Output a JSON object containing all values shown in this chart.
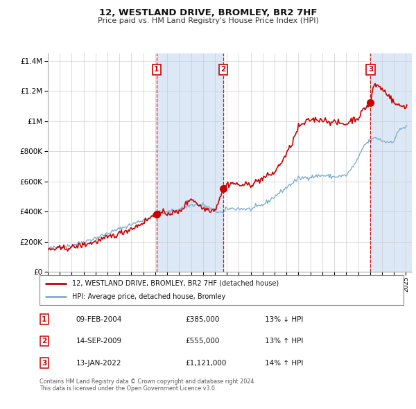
{
  "title": "12, WESTLAND DRIVE, BROMLEY, BR2 7HF",
  "subtitle": "Price paid vs. HM Land Registry's House Price Index (HPI)",
  "xlim": [
    1995.0,
    2025.5
  ],
  "ylim": [
    0,
    1450000
  ],
  "yticks": [
    0,
    200000,
    400000,
    600000,
    800000,
    1000000,
    1200000,
    1400000
  ],
  "ytick_labels": [
    "£0",
    "£200K",
    "£400K",
    "£600K",
    "£800K",
    "£1M",
    "£1.2M",
    "£1.4M"
  ],
  "xticks": [
    1995,
    1996,
    1997,
    1998,
    1999,
    2000,
    2001,
    2002,
    2003,
    2004,
    2005,
    2006,
    2007,
    2008,
    2009,
    2010,
    2011,
    2012,
    2013,
    2014,
    2015,
    2016,
    2017,
    2018,
    2019,
    2020,
    2021,
    2022,
    2023,
    2024,
    2025
  ],
  "transaction_color": "#cc0000",
  "hpi_color": "#7bafd4",
  "sale_marker_color": "#cc0000",
  "sale_dates": [
    2004.11,
    2009.71,
    2022.04
  ],
  "sale_prices": [
    385000,
    555000,
    1121000
  ],
  "sale_labels": [
    "1",
    "2",
    "3"
  ],
  "transaction_label": "12, WESTLAND DRIVE, BROMLEY, BR2 7HF (detached house)",
  "hpi_label": "HPI: Average price, detached house, Bromley",
  "legend_entries": [
    {
      "date": "09-FEB-2004",
      "price": "£385,000",
      "pct": "13% ↓ HPI",
      "label": "1"
    },
    {
      "date": "14-SEP-2009",
      "price": "£555,000",
      "pct": "13% ↑ HPI",
      "label": "2"
    },
    {
      "date": "13-JAN-2022",
      "price": "£1,121,000",
      "pct": "14% ↑ HPI",
      "label": "3"
    }
  ],
  "footnote": "Contains HM Land Registry data © Crown copyright and database right 2024.\nThis data is licensed under the Open Government Licence v3.0.",
  "background_color": "#ffffff",
  "plot_bg_color": "#ffffff",
  "grid_color": "#cccccc",
  "shade_color": "#dce8f5",
  "shade_regions": [
    {
      "x_start": 2004.11,
      "x_end": 2009.71
    },
    {
      "x_start": 2022.04,
      "x_end": 2025.5
    }
  ],
  "hpi_anchors_years": [
    1995.0,
    1997.0,
    1999.0,
    2001.0,
    2003.0,
    2004.11,
    2005.0,
    2006.0,
    2007.0,
    2008.0,
    2009.0,
    2009.71,
    2010.0,
    2011.0,
    2012.0,
    2013.0,
    2013.5,
    2014.5,
    2015.5,
    2016.0,
    2017.0,
    2018.0,
    2019.0,
    2020.0,
    2020.5,
    2021.0,
    2021.5,
    2022.0,
    2022.5,
    2023.0,
    2023.5,
    2024.0,
    2024.5,
    2025.0
  ],
  "hpi_anchors_vals": [
    155000,
    175000,
    225000,
    285000,
    345000,
    385000,
    395000,
    415000,
    445000,
    445000,
    405000,
    390000,
    420000,
    420000,
    415000,
    445000,
    470000,
    530000,
    590000,
    620000,
    630000,
    640000,
    630000,
    640000,
    690000,
    750000,
    840000,
    870000,
    890000,
    870000,
    860000,
    870000,
    950000,
    960000
  ],
  "tx_anchors_years": [
    1995.0,
    1997.0,
    1999.0,
    2001.0,
    2002.5,
    2004.11,
    2004.5,
    2005.0,
    2006.0,
    2007.0,
    2008.0,
    2008.5,
    2009.0,
    2009.71,
    2010.0,
    2010.5,
    2011.0,
    2012.0,
    2013.0,
    2013.5,
    2014.0,
    2015.0,
    2015.5,
    2016.0,
    2017.0,
    2018.0,
    2019.0,
    2020.0,
    2020.5,
    2021.0,
    2021.5,
    2022.04,
    2022.3,
    2022.8,
    2023.0,
    2023.5,
    2024.0,
    2024.5,
    2025.0
  ],
  "tx_anchors_vals": [
    148000,
    162000,
    200000,
    255000,
    305000,
    385000,
    388000,
    390000,
    395000,
    490000,
    420000,
    415000,
    410000,
    555000,
    580000,
    590000,
    575000,
    580000,
    620000,
    640000,
    660000,
    780000,
    860000,
    960000,
    1010000,
    1010000,
    990000,
    980000,
    1010000,
    1020000,
    1080000,
    1121000,
    1240000,
    1230000,
    1210000,
    1180000,
    1120000,
    1100000,
    1100000
  ]
}
